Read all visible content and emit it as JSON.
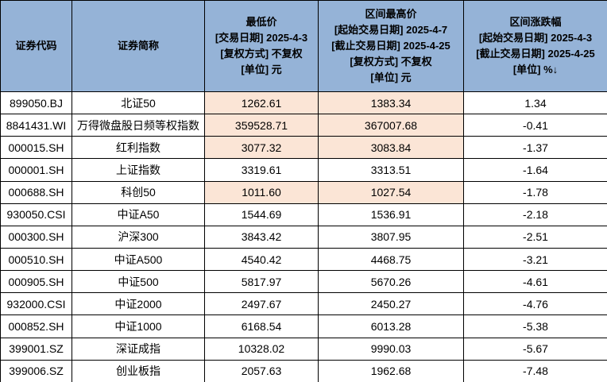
{
  "table": {
    "headers": [
      {
        "key": "code",
        "label": "证券代码"
      },
      {
        "key": "name",
        "label": "证券简称"
      },
      {
        "key": "low",
        "label": "最低价\n[交易日期] 2025-4-3\n[复权方式] 不复权\n[单位] 元"
      },
      {
        "key": "high",
        "label": "区间最高价\n[起始交易日期] 2025-4-7\n[截止交易日期] 2025-4-25\n[复权方式] 不复权\n[单位] 元"
      },
      {
        "key": "chg",
        "label": "区间涨跌幅\n[起始交易日期] 2025-4-3\n[截止交易日期] 2025-4-25\n[单位] %↓"
      }
    ],
    "sort": {
      "column_key": "chg",
      "direction": "desc",
      "glyph": "↓"
    },
    "rows": [
      {
        "code": "899050.BJ",
        "name": "北证50",
        "low": "1262.61",
        "high": "1383.34",
        "chg": "1.34",
        "highlight": true
      },
      {
        "code": "8841431.WI",
        "name": "万得微盘股日频等权指数",
        "low": "359528.71",
        "high": "367007.68",
        "chg": "-0.41",
        "highlight": true
      },
      {
        "code": "000015.SH",
        "name": "红利指数",
        "low": "3077.32",
        "high": "3083.84",
        "chg": "-1.37",
        "highlight": true
      },
      {
        "code": "000001.SH",
        "name": "上证指数",
        "low": "3319.61",
        "high": "3313.51",
        "chg": "-1.64",
        "highlight": false
      },
      {
        "code": "000688.SH",
        "name": "科创50",
        "low": "1011.60",
        "high": "1027.54",
        "chg": "-1.78",
        "highlight": true
      },
      {
        "code": "930050.CSI",
        "name": "中证A50",
        "low": "1544.69",
        "high": "1536.91",
        "chg": "-2.18",
        "highlight": false
      },
      {
        "code": "000300.SH",
        "name": "沪深300",
        "low": "3843.42",
        "high": "3807.95",
        "chg": "-2.51",
        "highlight": false
      },
      {
        "code": "000510.SH",
        "name": "中证A500",
        "low": "4540.42",
        "high": "4468.75",
        "chg": "-3.21",
        "highlight": false
      },
      {
        "code": "000905.SH",
        "name": "中证500",
        "low": "5817.97",
        "high": "5670.26",
        "chg": "-4.61",
        "highlight": false
      },
      {
        "code": "932000.CSI",
        "name": "中证2000",
        "low": "2497.67",
        "high": "2450.27",
        "chg": "-4.76",
        "highlight": false
      },
      {
        "code": "000852.SH",
        "name": "中证1000",
        "low": "6168.54",
        "high": "6013.28",
        "chg": "-5.38",
        "highlight": false
      },
      {
        "code": "399001.SZ",
        "name": "深证成指",
        "low": "10328.02",
        "high": "9990.03",
        "chg": "-5.67",
        "highlight": false
      },
      {
        "code": "399006.SZ",
        "name": "创业板指",
        "low": "2057.63",
        "high": "1962.68",
        "chg": "-7.48",
        "highlight": false
      }
    ],
    "colors": {
      "header_bg": "#95B3D7",
      "highlight_bg": "#FBE5D6",
      "row_bg": "#FFFFFF",
      "border": "#000000",
      "text": "#000000"
    }
  }
}
